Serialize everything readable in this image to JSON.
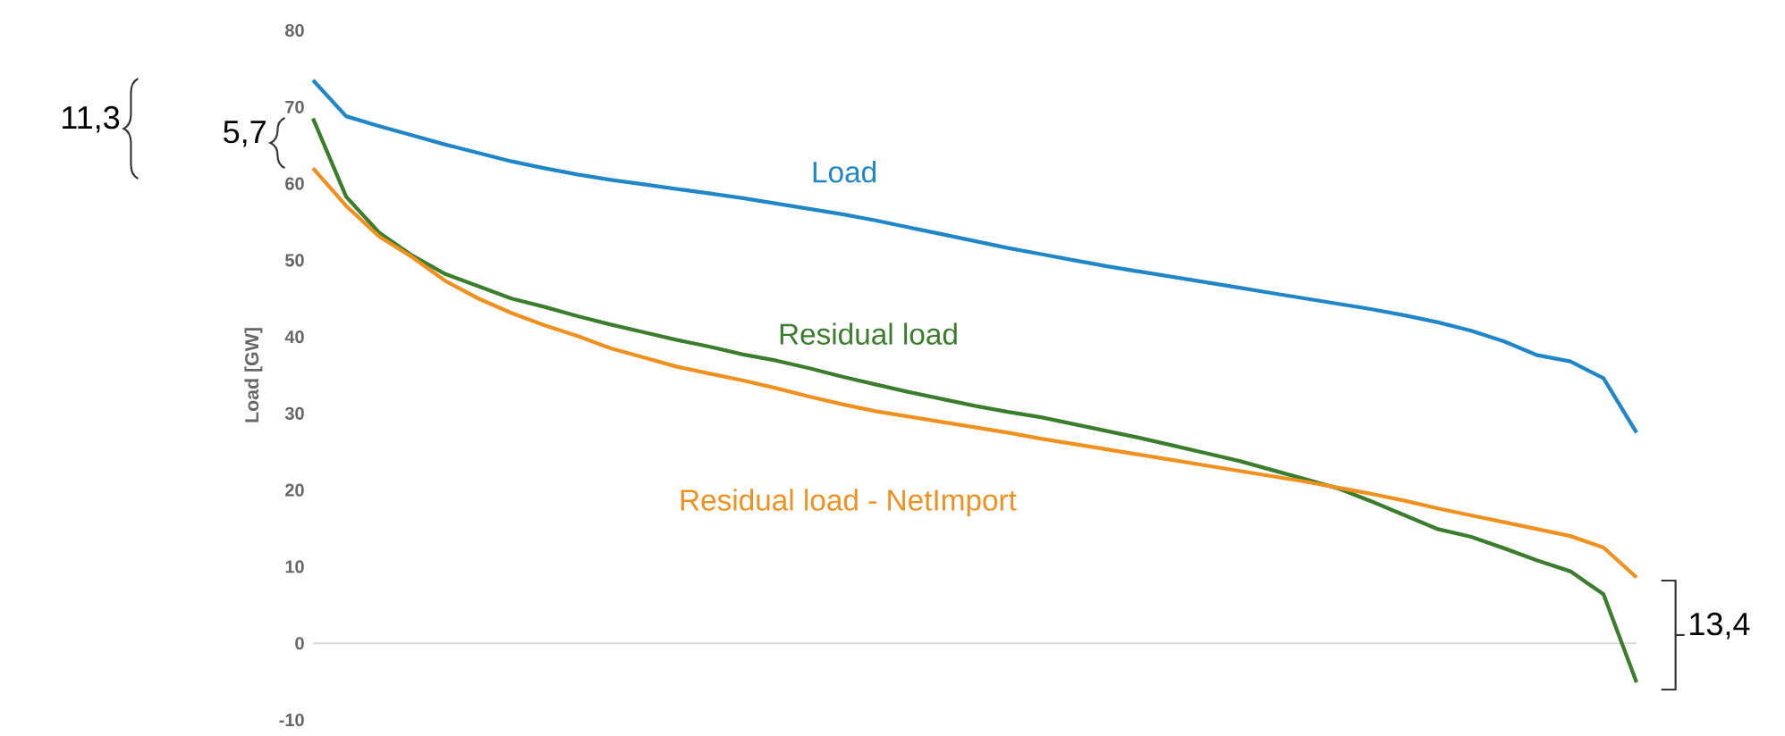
{
  "chart_data": {
    "type": "line",
    "ylabel": "Load [GW]",
    "ylim": [
      -10,
      80
    ],
    "yticks": [
      -10,
      0,
      10,
      20,
      30,
      40,
      50,
      60,
      70,
      80
    ],
    "tick_labels": "y",
    "categories": [
      null,
      null,
      null,
      null,
      null,
      null,
      null,
      null,
      null,
      null,
      null,
      null,
      null,
      null,
      null,
      null,
      null,
      null,
      null,
      null,
      null,
      null,
      null,
      null,
      null,
      null,
      null,
      null,
      null,
      null,
      null,
      null,
      null,
      null,
      null,
      null,
      null,
      null,
      null,
      null,
      null
    ],
    "series": [
      {
        "name": "Load",
        "color": "#1f86c8",
        "values": [
          73.5,
          68.8,
          67.5,
          66.3,
          65.1,
          64.0,
          62.9,
          62.0,
          61.2,
          60.5,
          59.9,
          59.3,
          58.7,
          58.1,
          57.4,
          56.7,
          56.0,
          55.2,
          54.3,
          53.4,
          52.5,
          51.6,
          50.8,
          50.0,
          49.2,
          48.5,
          47.8,
          47.1,
          46.4,
          45.7,
          45.0,
          44.3,
          43.6,
          42.8,
          41.9,
          40.8,
          39.4,
          37.6,
          36.8,
          34.6,
          27.5
        ]
      },
      {
        "name": "Residual load",
        "color": "#3a7d2c",
        "values": [
          68.5,
          58.3,
          53.6,
          50.6,
          48.2,
          46.6,
          45.0,
          43.9,
          42.7,
          41.6,
          40.6,
          39.6,
          38.7,
          37.7,
          36.9,
          35.9,
          34.8,
          33.8,
          32.8,
          31.9,
          31.0,
          30.2,
          29.5,
          28.6,
          27.7,
          26.8,
          25.8,
          24.8,
          23.8,
          22.6,
          21.4,
          20.2,
          18.5,
          16.7,
          14.9,
          13.9,
          12.4,
          10.8,
          9.4,
          6.4,
          -5.1
        ]
      },
      {
        "name": "Residual load - NetImport",
        "color": "#f0901e",
        "values": [
          62.0,
          57.1,
          53.1,
          50.4,
          47.3,
          45.0,
          43.1,
          41.5,
          40.1,
          38.5,
          37.3,
          36.1,
          35.2,
          34.3,
          33.3,
          32.2,
          31.2,
          30.3,
          29.6,
          28.9,
          28.2,
          27.5,
          26.7,
          26.0,
          25.3,
          24.6,
          23.9,
          23.2,
          22.5,
          21.8,
          21.1,
          20.3,
          19.5,
          18.6,
          17.6,
          16.7,
          15.8,
          14.9,
          14.0,
          12.5,
          8.6
        ]
      }
    ],
    "annotations": [
      "11,3",
      "5,7",
      "13,4"
    ]
  }
}
